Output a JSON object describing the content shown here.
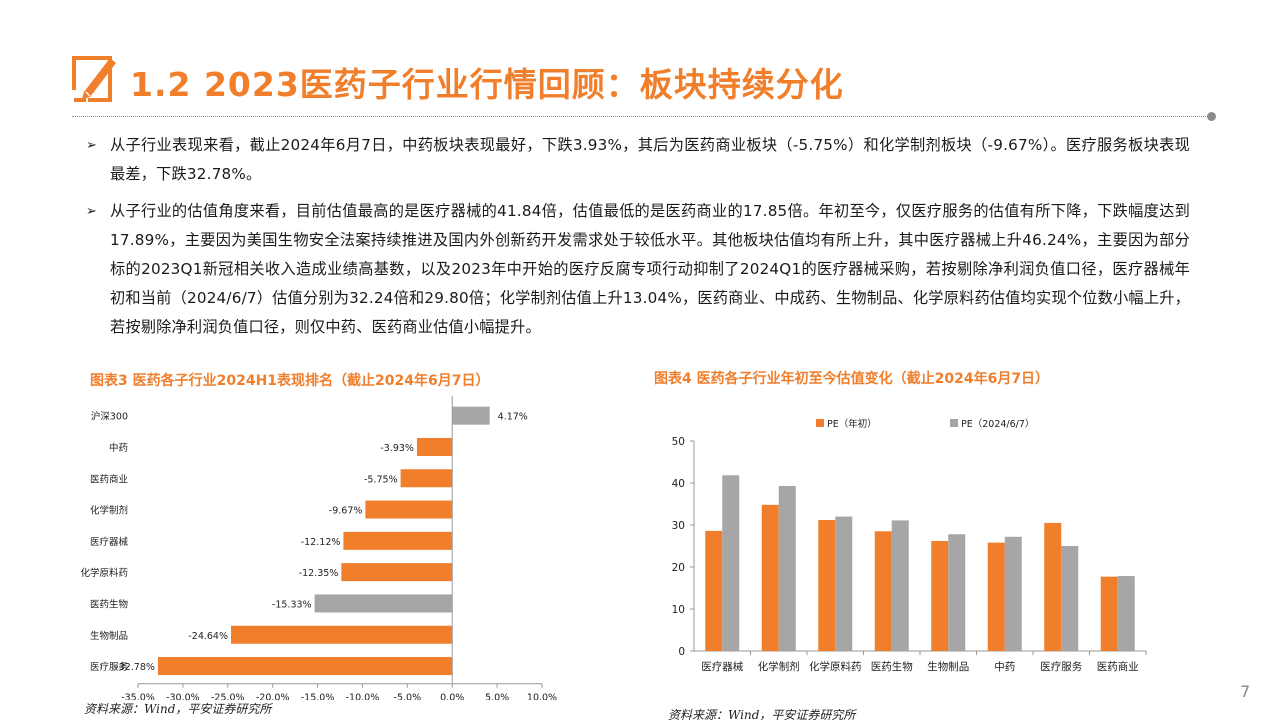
{
  "header": {
    "title": "1.2 2023医药子行业行情回顾：板块持续分化",
    "logo_icon": "pencil-square-icon",
    "accent_color": "#f07e2b"
  },
  "bullets": [
    {
      "marker": "➢",
      "text": "从子行业表现来看，截止2024年6月7日，中药板块表现最好，下跌3.93%，其后为医药商业板块（-5.75%）和化学制剂板块（-9.67%）。医疗服务板块表现最差，下跌32.78%。"
    },
    {
      "marker": "➢",
      "text": "从子行业的估值角度来看，目前估值最高的是医疗器械的41.84倍，估值最低的是医药商业的17.85倍。年初至今，仅医疗服务的估值有所下降，下跌幅度达到17.89%，主要因为美国生物安全法案持续推进及国内外创新药开发需求处于较低水平。其他板块估值均有所上升，其中医疗器械上升46.24%，主要因为部分标的2023Q1新冠相关收入造成业绩高基数，以及2023年中开始的医疗反腐专项行动抑制了2024Q1的医疗器械采购，若按剔除净利润负值口径，医疗器械年初和当前（2024/6/7）估值分别为32.24倍和29.80倍；化学制剂估值上升13.04%，医药商业、中成药、生物制品、化学原料药估值均实现个位数小幅上升，若按剔除净利润负值口径，则仅中药、医药商业估值小幅提升。"
    }
  ],
  "figure3": {
    "title": "图表3 医药各子行业2024H1表现排名（截止2024年6月7日）",
    "source": "资料来源：Wind，平安证券研究所"
  },
  "figure4": {
    "title": "图表4 医药各子行业年初至今估值变化（截止2024年6月7日）",
    "source": "资料来源：Wind，平安证券研究所"
  },
  "page_number": "7",
  "chart_data": [
    {
      "type": "bar",
      "orientation": "horizontal",
      "categories": [
        "沪深300",
        "中药",
        "医药商业",
        "化学制剂",
        "医疗器械",
        "化学原料药",
        "医药生物",
        "生物制品",
        "医疗服务"
      ],
      "values": [
        4.17,
        -3.93,
        -5.75,
        -9.67,
        -12.12,
        -12.35,
        -15.33,
        -24.64,
        -32.78
      ],
      "value_labels": [
        "4.17%",
        "-3.93%",
        "-5.75%",
        "-9.67%",
        "-12.12%",
        "-12.35%",
        "-15.33%",
        "-24.64%",
        "-32.78%"
      ],
      "bar_colors": [
        "#a6a6a6",
        "#f07e2b",
        "#f07e2b",
        "#f07e2b",
        "#f07e2b",
        "#f07e2b",
        "#a6a6a6",
        "#f07e2b",
        "#f07e2b"
      ],
      "xlim": [
        -35,
        10
      ],
      "x_ticks": [
        -35,
        -30,
        -25,
        -20,
        -15,
        -10,
        -5,
        0,
        5,
        10
      ],
      "x_tick_labels": [
        "-35.0%",
        "-30.0%",
        "-25.0%",
        "-20.0%",
        "-15.0%",
        "-10.0%",
        "-5.0%",
        "0.0%",
        "5.0%",
        "10.0%"
      ],
      "grid": false,
      "legend": "none"
    },
    {
      "type": "bar",
      "categories": [
        "医疗器械",
        "化学制剂",
        "化学原料药",
        "医药生物",
        "生物制品",
        "中药",
        "医疗服务",
        "医药商业"
      ],
      "series": [
        {
          "name": "PE（年初）",
          "color": "#f07e2b",
          "values": [
            28.6,
            34.8,
            31.2,
            28.5,
            26.2,
            25.8,
            30.5,
            17.7
          ]
        },
        {
          "name": "PE（2024/6/7）",
          "color": "#a6a6a6",
          "values": [
            41.84,
            39.3,
            32.0,
            31.1,
            27.8,
            27.2,
            25.0,
            17.85
          ]
        }
      ],
      "ylim": [
        0,
        50
      ],
      "y_ticks": [
        0,
        10,
        20,
        30,
        40,
        50
      ],
      "grid": false,
      "legend": "top"
    }
  ]
}
